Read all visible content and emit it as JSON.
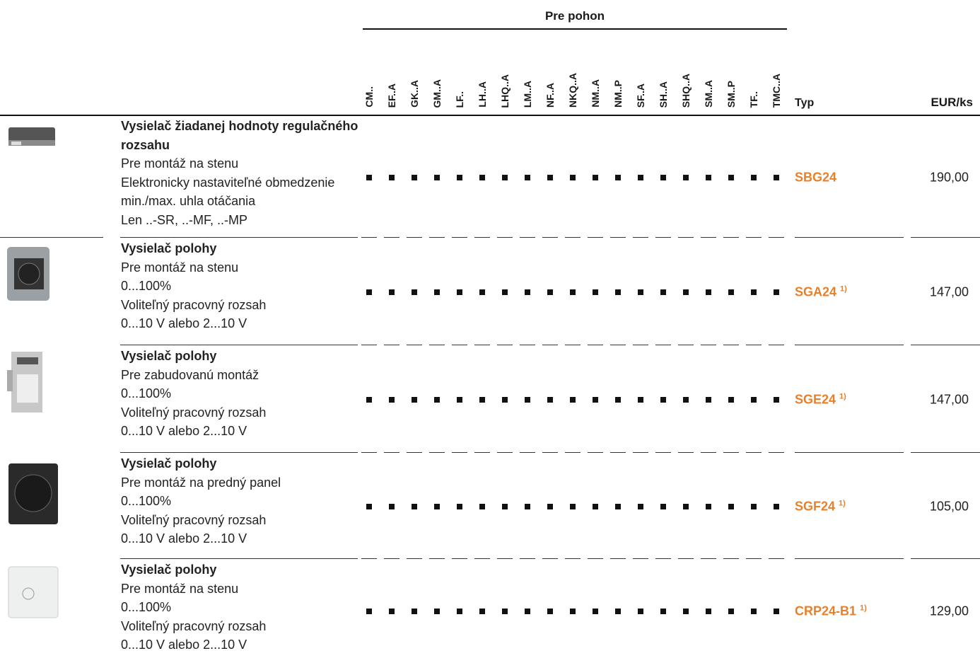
{
  "header": {
    "group_title": "Pre pohon",
    "columns": [
      "CM..",
      "EF..A",
      "GK..A",
      "GM..A",
      "LF..",
      "LH..A",
      "LHQ..A",
      "LM..A",
      "NF..A",
      "NKQ..A",
      "NM..A",
      "NM..P",
      "SF..A",
      "SH..A",
      "SHQ..A",
      "SM..A",
      "SM..P",
      "TF..",
      "TMC..A"
    ],
    "type_label": "Typ",
    "price_label": "EUR/ks"
  },
  "rows": [
    {
      "title": "Vysielač žiadanej hodnoty regulačného rozsahu",
      "lines": [
        "Pre montáž na stenu",
        "Elektronicky nastaviteľné obmedzenie",
        "min./max. uhla otáčania",
        "Len ..-SR, ..-MF, ..-MP"
      ],
      "type": "SBG24",
      "price": "190,00"
    },
    {
      "title": "Vysielač polohy",
      "lines": [
        "Pre montáž na stenu",
        "0...100%",
        "Voliteľný pracovný rozsah",
        "0...10 V alebo 2...10 V"
      ],
      "type": "SGA24",
      "note": "1)",
      "price": "147,00"
    },
    {
      "title": "Vysielač polohy",
      "lines": [
        "Pre zabudovanú montáž",
        "0...100%",
        "Voliteľný pracovný rozsah",
        "0...10 V alebo 2...10 V"
      ],
      "type": "SGE24",
      "note": "1)",
      "price": "147,00"
    },
    {
      "title": "Vysielač polohy",
      "lines": [
        "Pre montáž na predný panel",
        "0...100%",
        "Voliteľný pracovný rozsah",
        "0...10 V alebo 2...10 V"
      ],
      "type": "SGF24",
      "note": "1)",
      "price": "105,00"
    },
    {
      "title": "Vysielač polohy",
      "lines": [
        "Pre montáž na stenu",
        "0...100%",
        "Voliteľný pracovný rozsah",
        "0...10 V alebo 2...10 V"
      ],
      "type": "CRP24-B1",
      "note": "1)",
      "price": "129,00"
    }
  ]
}
